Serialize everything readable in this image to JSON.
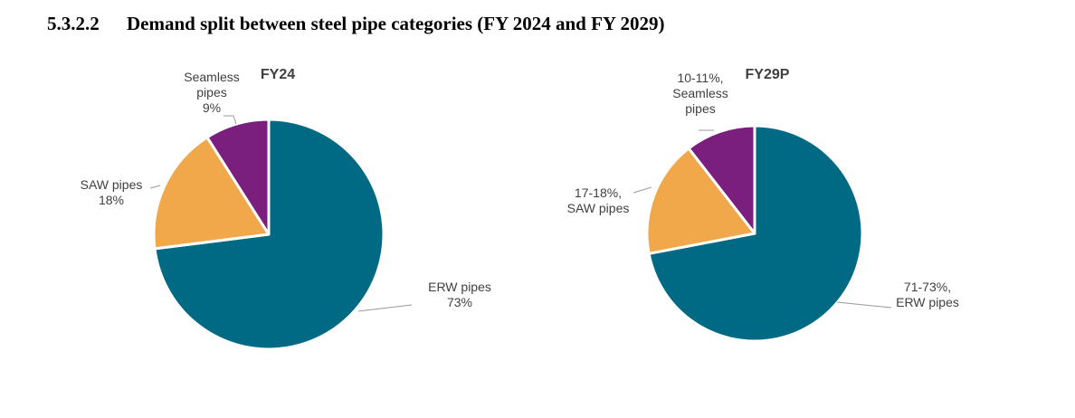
{
  "heading": {
    "number": "5.3.2.2",
    "text": "Demand split between steel pipe categories (FY 2024 and FY 2029)"
  },
  "colors": {
    "erw": "#006A84",
    "saw": "#F0A84A",
    "seamless": "#7B1F7E",
    "leader": "#9a9a9a",
    "text": "#404040"
  },
  "chart_data": [
    {
      "type": "pie",
      "title": "FY24",
      "slices": [
        {
          "key": "erw",
          "name": "ERW pipes",
          "value": 73,
          "label_lines": [
            "ERW pipes",
            "73%"
          ]
        },
        {
          "key": "saw",
          "name": "SAW pipes",
          "value": 18,
          "label_lines": [
            "SAW pipes",
            "18%"
          ]
        },
        {
          "key": "seamless",
          "name": "Seamless pipes",
          "value": 9,
          "label_lines": [
            "Seamless",
            "pipes",
            "9%"
          ]
        }
      ]
    },
    {
      "type": "pie",
      "title": "FY29P",
      "slices": [
        {
          "key": "erw",
          "name": "ERW pipes",
          "value": 72,
          "display_range": "71-73%",
          "label_lines": [
            "71-73%,",
            "ERW pipes"
          ]
        },
        {
          "key": "saw",
          "name": "SAW pipes",
          "value": 17.5,
          "display_range": "17-18%",
          "label_lines": [
            "17-18%,",
            "SAW pipes"
          ]
        },
        {
          "key": "seamless",
          "name": "Seamless pipes",
          "value": 10.5,
          "display_range": "10-11%",
          "label_lines": [
            "10-11%,",
            "Seamless",
            "pipes"
          ]
        }
      ]
    }
  ]
}
